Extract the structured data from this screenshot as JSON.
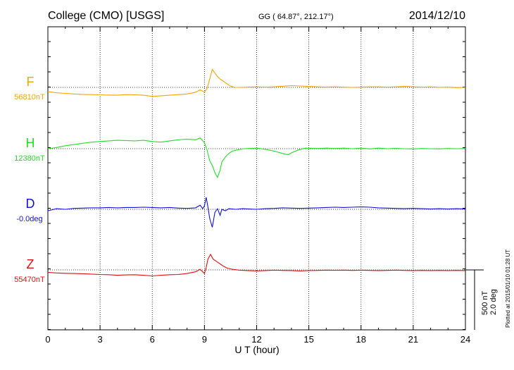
{
  "header": {
    "station": "College (CMO)  [USGS]",
    "coords": "GG ( 64.87°, 212.17°)",
    "date": "2014/12/10"
  },
  "footer": {
    "plotted_note": "Plotted at 2015/01/10 01:28 UT"
  },
  "chart_data": {
    "type": "line",
    "title": "College (CMO)  [USGS]",
    "xlabel": "U T (hour)",
    "xlim": [
      0,
      24
    ],
    "x_ticks": [
      0,
      3,
      6,
      9,
      12,
      15,
      18,
      21,
      24
    ],
    "grid": true,
    "scale_bar": {
      "label_nt": "500 nT",
      "label_deg": "2.0 deg",
      "nt": 500,
      "deg": 2.0
    },
    "series": [
      {
        "name": "F",
        "baseline_label": "56810nT",
        "baseline": 56810,
        "unit": "nT",
        "color": "#f5a400",
        "points": [
          [
            0,
            56775
          ],
          [
            0.5,
            56765
          ],
          [
            1,
            56760
          ],
          [
            1.5,
            56755
          ],
          [
            2,
            56752
          ],
          [
            2.5,
            56750
          ],
          [
            3,
            56748
          ],
          [
            3.5,
            56746
          ],
          [
            4,
            56745
          ],
          [
            4.5,
            56750
          ],
          [
            5,
            56748
          ],
          [
            5.5,
            56745
          ],
          [
            6,
            56735
          ],
          [
            6.5,
            56740
          ],
          [
            7,
            56745
          ],
          [
            7.5,
            56750
          ],
          [
            8,
            56755
          ],
          [
            8.5,
            56770
          ],
          [
            8.75,
            56790
          ],
          [
            9,
            56770
          ],
          [
            9.15,
            56800
          ],
          [
            9.3,
            56880
          ],
          [
            9.45,
            56960
          ],
          [
            9.6,
            56930
          ],
          [
            9.75,
            56900
          ],
          [
            9.9,
            56880
          ],
          [
            10.1,
            56860
          ],
          [
            10.3,
            56840
          ],
          [
            10.5,
            56820
          ],
          [
            10.75,
            56810
          ],
          [
            11,
            56810
          ],
          [
            11.5,
            56812
          ],
          [
            12,
            56815
          ],
          [
            12.5,
            56812
          ],
          [
            13,
            56815
          ],
          [
            13.5,
            56820
          ],
          [
            14,
            56825
          ],
          [
            14.5,
            56822
          ],
          [
            15,
            56818
          ],
          [
            15.5,
            56815
          ],
          [
            16,
            56812
          ],
          [
            16.5,
            56815
          ],
          [
            17,
            56812
          ],
          [
            17.5,
            56810
          ],
          [
            18,
            56812
          ],
          [
            18.5,
            56815
          ],
          [
            19,
            56815
          ],
          [
            19.5,
            56812
          ],
          [
            20,
            56815
          ],
          [
            20.5,
            56818
          ],
          [
            21,
            56815
          ],
          [
            21.5,
            56812
          ],
          [
            22,
            56815
          ],
          [
            22.5,
            56810
          ],
          [
            23,
            56812
          ],
          [
            23.5,
            56808
          ],
          [
            24,
            56810
          ]
        ]
      },
      {
        "name": "H",
        "baseline_label": "12380nT",
        "baseline": 12380,
        "unit": "nT",
        "color": "#22e022",
        "points": [
          [
            0,
            12380
          ],
          [
            0.5,
            12390
          ],
          [
            1,
            12405
          ],
          [
            1.5,
            12415
          ],
          [
            2,
            12425
          ],
          [
            2.5,
            12435
          ],
          [
            3,
            12440
          ],
          [
            3.5,
            12445
          ],
          [
            4,
            12450
          ],
          [
            4.5,
            12448
          ],
          [
            5,
            12445
          ],
          [
            5.5,
            12450
          ],
          [
            6,
            12440
          ],
          [
            6.5,
            12435
          ],
          [
            7,
            12445
          ],
          [
            7.5,
            12455
          ],
          [
            8,
            12460
          ],
          [
            8.5,
            12455
          ],
          [
            8.75,
            12470
          ],
          [
            9,
            12430
          ],
          [
            9.15,
            12370
          ],
          [
            9.3,
            12280
          ],
          [
            9.45,
            12240
          ],
          [
            9.6,
            12180
          ],
          [
            9.75,
            12140
          ],
          [
            9.9,
            12200
          ],
          [
            10,
            12270
          ],
          [
            10.2,
            12310
          ],
          [
            10.4,
            12340
          ],
          [
            10.6,
            12360
          ],
          [
            10.9,
            12370
          ],
          [
            11.2,
            12380
          ],
          [
            11.6,
            12382
          ],
          [
            12,
            12385
          ],
          [
            12.5,
            12375
          ],
          [
            13,
            12360
          ],
          [
            13.5,
            12340
          ],
          [
            13.8,
            12330
          ],
          [
            14,
            12345
          ],
          [
            14.4,
            12370
          ],
          [
            14.8,
            12385
          ],
          [
            15.5,
            12382
          ],
          [
            16,
            12385
          ],
          [
            16.5,
            12382
          ],
          [
            17,
            12385
          ],
          [
            17.5,
            12380
          ],
          [
            18,
            12385
          ],
          [
            18.5,
            12378
          ],
          [
            19,
            12385
          ],
          [
            19.5,
            12380
          ],
          [
            20,
            12383
          ],
          [
            20.5,
            12380
          ],
          [
            21,
            12378
          ],
          [
            21.5,
            12382
          ],
          [
            22,
            12380
          ],
          [
            22.5,
            12378
          ],
          [
            23,
            12382
          ],
          [
            23.5,
            12380
          ],
          [
            24,
            12382
          ]
        ]
      },
      {
        "name": "D",
        "baseline_label": "-0.0deg",
        "baseline": 0.0,
        "unit": "deg",
        "color": "#1010e0",
        "points": [
          [
            0,
            -0.05
          ],
          [
            0.5,
            0.02
          ],
          [
            1,
            0.0
          ],
          [
            1.5,
            0.03
          ],
          [
            2,
            0.04
          ],
          [
            2.5,
            0.05
          ],
          [
            3,
            0.05
          ],
          [
            3.5,
            0.06
          ],
          [
            4,
            0.05
          ],
          [
            4.5,
            0.06
          ],
          [
            5,
            0.06
          ],
          [
            5.5,
            0.07
          ],
          [
            6,
            0.06
          ],
          [
            6.5,
            0.05
          ],
          [
            7,
            0.06
          ],
          [
            7.5,
            0.04
          ],
          [
            8,
            0.03
          ],
          [
            8.5,
            0.05
          ],
          [
            8.75,
            0.14
          ],
          [
            8.9,
            0.02
          ],
          [
            9,
            0.12
          ],
          [
            9.1,
            0.4
          ],
          [
            9.2,
            0.08
          ],
          [
            9.3,
            -0.3
          ],
          [
            9.45,
            -0.6
          ],
          [
            9.6,
            -0.1
          ],
          [
            9.75,
            0.02
          ],
          [
            9.9,
            -0.2
          ],
          [
            10,
            0.0
          ],
          [
            10.2,
            -0.05
          ],
          [
            10.4,
            0.02
          ],
          [
            10.8,
            0.0
          ],
          [
            11.2,
            0.02
          ],
          [
            12,
            0.0
          ],
          [
            12.5,
            0.02
          ],
          [
            13,
            0.03
          ],
          [
            13.5,
            0.05
          ],
          [
            14,
            0.04
          ],
          [
            14.5,
            0.03
          ],
          [
            15,
            0.04
          ],
          [
            15.5,
            0.05
          ],
          [
            16,
            0.06
          ],
          [
            16.5,
            0.07
          ],
          [
            17,
            0.06
          ],
          [
            17.5,
            0.07
          ],
          [
            18,
            0.08
          ],
          [
            18.5,
            0.07
          ],
          [
            19,
            0.05
          ],
          [
            19.5,
            0.04
          ],
          [
            20,
            0.03
          ],
          [
            20.5,
            0.02
          ],
          [
            21,
            0.03
          ],
          [
            21.5,
            0.02
          ],
          [
            22,
            0.01
          ],
          [
            22.5,
            0.02
          ],
          [
            23,
            0.01
          ],
          [
            23.5,
            0.02
          ],
          [
            24,
            0.01
          ]
        ]
      },
      {
        "name": "Z",
        "baseline_label": "55470nT",
        "baseline": 55470,
        "unit": "nT",
        "color": "#e01010",
        "points": [
          [
            0,
            55450
          ],
          [
            0.5,
            55445
          ],
          [
            1,
            55442
          ],
          [
            1.5,
            55440
          ],
          [
            2,
            55438
          ],
          [
            2.5,
            55435
          ],
          [
            3,
            55432
          ],
          [
            3.5,
            55430
          ],
          [
            4,
            55425
          ],
          [
            4.5,
            55428
          ],
          [
            5,
            55430
          ],
          [
            5.5,
            55425
          ],
          [
            6,
            55420
          ],
          [
            6.5,
            55425
          ],
          [
            7,
            55430
          ],
          [
            7.5,
            55432
          ],
          [
            8,
            55440
          ],
          [
            8.5,
            55455
          ],
          [
            8.75,
            55475
          ],
          [
            9,
            55440
          ],
          [
            9.1,
            55490
          ],
          [
            9.2,
            55560
          ],
          [
            9.35,
            55600
          ],
          [
            9.5,
            55560
          ],
          [
            9.7,
            55540
          ],
          [
            9.9,
            55520
          ],
          [
            10.1,
            55500
          ],
          [
            10.3,
            55485
          ],
          [
            10.6,
            55475
          ],
          [
            11,
            55468
          ],
          [
            11.5,
            55465
          ],
          [
            12,
            55462
          ],
          [
            12.5,
            55465
          ],
          [
            13,
            55468
          ],
          [
            13.5,
            55466
          ],
          [
            14,
            55465
          ],
          [
            14.5,
            55462
          ],
          [
            15,
            55464
          ],
          [
            15.5,
            55466
          ],
          [
            16,
            55468
          ],
          [
            16.5,
            55467
          ],
          [
            17,
            55468
          ],
          [
            17.5,
            55466
          ],
          [
            18,
            55468
          ],
          [
            18.5,
            55466
          ],
          [
            19,
            55465
          ],
          [
            19.5,
            55466
          ],
          [
            20,
            55468
          ],
          [
            20.5,
            55466
          ],
          [
            21,
            55465
          ],
          [
            21.5,
            55466
          ],
          [
            22,
            55465
          ],
          [
            22.5,
            55466
          ],
          [
            23,
            55465
          ],
          [
            23.5,
            55466
          ],
          [
            24,
            55465
          ]
        ]
      }
    ]
  }
}
